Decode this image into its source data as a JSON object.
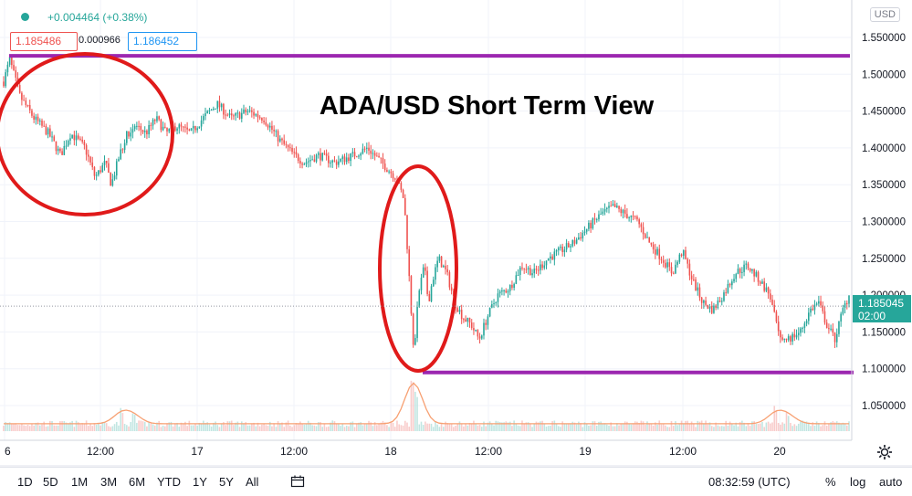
{
  "header": {
    "change_text": "+0.004464 (+0.38%)",
    "bid": "1.185486",
    "spread": "0.000966",
    "ask": "1.186452"
  },
  "currency": "USD",
  "last_price": "1.185045",
  "last_countdown": "02:00",
  "annotation_title": "ADA/USD Short Term View",
  "bottom": {
    "ranges": [
      "1D",
      "5D",
      "1M",
      "3M",
      "6M",
      "YTD",
      "1Y",
      "5Y",
      "All"
    ],
    "clock": "08:32:59 (UTC)",
    "percent": "%",
    "log": "log",
    "auto": "auto"
  },
  "colors": {
    "up": "#26a69a",
    "down": "#ef5350",
    "level_line": "#9c27b0",
    "circle": "#e01a1a",
    "volume": "#f7a072"
  },
  "icons": [
    "compare-icon",
    "settings-icon",
    "status-dot"
  ],
  "chart_data": {
    "type": "candlestick",
    "ylim": [
      1.0,
      1.57
    ],
    "y_ticks": [
      "1.550000",
      "1.500000",
      "1.450000",
      "1.400000",
      "1.350000",
      "1.300000",
      "1.250000",
      "1.200000",
      "1.150000",
      "1.100000",
      "1.050000"
    ],
    "x_ticks": [
      "6",
      "12:00",
      "17",
      "12:00",
      "18",
      "12:00",
      "19",
      "12:00",
      "20"
    ],
    "resistance_level": 1.525,
    "support_level": 1.095,
    "last_value": 1.185045,
    "price_path": [
      [
        0,
        1.49
      ],
      [
        0.3,
        1.52
      ],
      [
        0.8,
        1.47
      ],
      [
        1.5,
        1.44
      ],
      [
        2.2,
        1.42
      ],
      [
        2.8,
        1.39
      ],
      [
        3.3,
        1.42
      ],
      [
        4.0,
        1.4
      ],
      [
        4.5,
        1.36
      ],
      [
        5.0,
        1.38
      ],
      [
        5.3,
        1.35
      ],
      [
        5.7,
        1.39
      ],
      [
        6.1,
        1.42
      ],
      [
        6.5,
        1.43
      ],
      [
        7.0,
        1.42
      ],
      [
        7.5,
        1.44
      ],
      [
        8.0,
        1.42
      ],
      [
        8.5,
        1.43
      ],
      [
        9.2,
        1.42
      ],
      [
        9.8,
        1.44
      ],
      [
        10.5,
        1.46
      ],
      [
        11.2,
        1.44
      ],
      [
        12.0,
        1.45
      ],
      [
        12.8,
        1.44
      ],
      [
        13.6,
        1.41
      ],
      [
        14.3,
        1.39
      ],
      [
        14.8,
        1.38
      ],
      [
        15.5,
        1.39
      ],
      [
        16.3,
        1.38
      ],
      [
        17.2,
        1.39
      ],
      [
        17.9,
        1.4
      ],
      [
        18.6,
        1.38
      ],
      [
        19.3,
        1.36
      ],
      [
        19.7,
        1.33
      ],
      [
        19.9,
        1.25
      ],
      [
        20.05,
        1.18
      ],
      [
        20.2,
        1.12
      ],
      [
        20.4,
        1.2
      ],
      [
        20.7,
        1.24
      ],
      [
        20.9,
        1.19
      ],
      [
        21.1,
        1.22
      ],
      [
        21.4,
        1.25
      ],
      [
        21.8,
        1.23
      ],
      [
        22.2,
        1.19
      ],
      [
        22.6,
        1.17
      ],
      [
        23.0,
        1.16
      ],
      [
        23.4,
        1.14
      ],
      [
        23.8,
        1.17
      ],
      [
        24.3,
        1.2
      ],
      [
        24.9,
        1.21
      ],
      [
        25.5,
        1.24
      ],
      [
        26.1,
        1.23
      ],
      [
        26.8,
        1.25
      ],
      [
        27.4,
        1.26
      ],
      [
        28.0,
        1.27
      ],
      [
        28.7,
        1.29
      ],
      [
        29.4,
        1.31
      ],
      [
        30.0,
        1.32
      ],
      [
        30.6,
        1.31
      ],
      [
        31.2,
        1.3
      ],
      [
        31.8,
        1.27
      ],
      [
        32.4,
        1.25
      ],
      [
        32.9,
        1.23
      ],
      [
        33.4,
        1.26
      ],
      [
        33.9,
        1.22
      ],
      [
        34.4,
        1.19
      ],
      [
        34.9,
        1.18
      ],
      [
        35.4,
        1.2
      ],
      [
        36.0,
        1.23
      ],
      [
        36.6,
        1.24
      ],
      [
        37.2,
        1.22
      ],
      [
        37.7,
        1.2
      ],
      [
        38.1,
        1.15
      ],
      [
        38.6,
        1.14
      ],
      [
        39.2,
        1.15
      ],
      [
        39.7,
        1.18
      ],
      [
        40.1,
        1.19
      ],
      [
        40.5,
        1.16
      ],
      [
        40.9,
        1.14
      ],
      [
        41.3,
        1.18
      ],
      [
        41.6,
        1.2
      ]
    ],
    "volume_spikes": [
      [
        5.8,
        0.35
      ],
      [
        6.4,
        0.25
      ],
      [
        20.1,
        0.9
      ],
      [
        20.3,
        0.55
      ],
      [
        38.0,
        0.35
      ],
      [
        38.6,
        0.25
      ]
    ]
  }
}
